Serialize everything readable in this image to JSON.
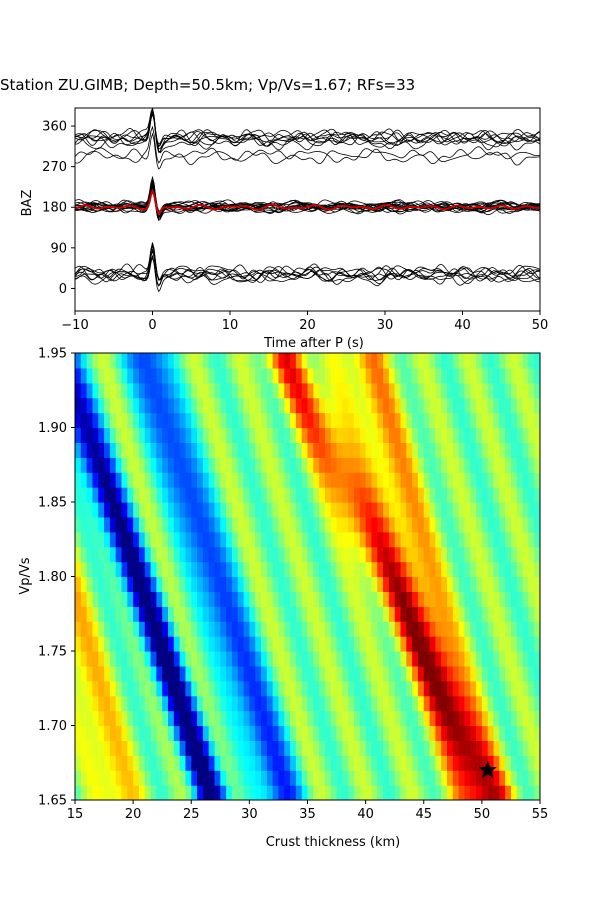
{
  "title": "Station ZU.GIMB; Depth=50.5km; Vp/Vs=1.67; RFs=33",
  "chart_data": [
    {
      "type": "line",
      "panel": "receiver-functions",
      "xlabel": "Time after P (s)",
      "ylabel": "BAZ",
      "xlim": [
        -10,
        50
      ],
      "ylim": [
        -50,
        400
      ],
      "xticks": [
        "−10",
        "0",
        "10",
        "20",
        "30",
        "40",
        "50"
      ],
      "yticks": [
        "0",
        "90",
        "180",
        "270",
        "360"
      ],
      "baz_groups": [
        {
          "baz": 330,
          "traces": 8
        },
        {
          "baz": 290,
          "traces": 2
        },
        {
          "baz": 180,
          "traces": 15
        },
        {
          "baz": 30,
          "traces": 8
        }
      ],
      "series": [
        {
          "name": "",
          "color": "#000000",
          "description_key": "individual RFs"
        },
        {
          "name": "",
          "color": "#cc0000",
          "description_key": "stacked RF at BAZ 180"
        }
      ],
      "grid": false
    },
    {
      "type": "heatmap",
      "panel": "h-kappa-stack",
      "xlabel": "Crust thickness (km)",
      "ylabel": "Vp/Vs",
      "xlim": [
        15,
        55
      ],
      "ylim": [
        1.65,
        1.95
      ],
      "xticks": [
        "15",
        "20",
        "25",
        "30",
        "35",
        "40",
        "45",
        "50",
        "55"
      ],
      "yticks": [
        "1.65",
        "1.70",
        "1.75",
        "1.80",
        "1.85",
        "1.90",
        "1.95"
      ],
      "colormap": "jet",
      "best_fit": {
        "H": 50.5,
        "k": 1.67,
        "marker": "star"
      },
      "grid": false
    }
  ]
}
